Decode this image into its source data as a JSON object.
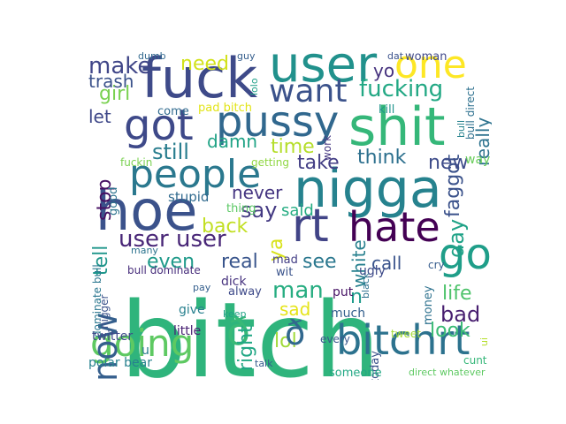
{
  "words": [
    {
      "text": "bitch",
      "color": "#2fb47c"
    },
    {
      "text": "nigga",
      "color": "#26828e"
    },
    {
      "text": "hoe",
      "color": "#3b528b"
    },
    {
      "text": "fuck",
      "color": "#3e4a89"
    },
    {
      "text": "user",
      "color": "#21918c"
    },
    {
      "text": "shit",
      "color": "#35b779"
    },
    {
      "text": "pussy",
      "color": "#31688e"
    },
    {
      "text": "got",
      "color": "#3e4989"
    },
    {
      "text": "people",
      "color": "#2a788e"
    },
    {
      "text": "rt",
      "color": "#414487"
    },
    {
      "text": "hate",
      "color": "#440154"
    },
    {
      "text": "bitchrt",
      "color": "#2c728e"
    },
    {
      "text": "go",
      "color": "#1f9e89"
    },
    {
      "text": "going",
      "color": "#5ec962"
    },
    {
      "text": "know",
      "color": "#355f8d"
    },
    {
      "text": "one",
      "color": "#fde725"
    },
    {
      "text": "want",
      "color": "#3b528b"
    },
    {
      "text": "ð",
      "color": "#38b977"
    },
    {
      "text": "fucking",
      "color": "#22a884"
    },
    {
      "text": "user user",
      "color": "#482677"
    },
    {
      "text": "make",
      "color": "#404688"
    },
    {
      "text": "need",
      "color": "#d2e21b"
    },
    {
      "text": "girl",
      "color": "#7ad151"
    },
    {
      "text": "trash",
      "color": "#3b528b"
    },
    {
      "text": "lol",
      "color": "#a0da39"
    },
    {
      "text": "ð",
      "color": "#31688e"
    },
    {
      "text": "still",
      "color": "#287d8e"
    },
    {
      "text": "time",
      "color": "#b5de2b"
    },
    {
      "text": "damn",
      "color": "#20a386"
    },
    {
      "text": "say",
      "color": "#443a83"
    },
    {
      "text": "even",
      "color": "#1f9a8a"
    },
    {
      "text": "real",
      "color": "#39558c"
    },
    {
      "text": "see",
      "color": "#2a778e"
    },
    {
      "text": "man",
      "color": "#27ad81"
    },
    {
      "text": "day",
      "color": "#1fa287"
    },
    {
      "text": "faggot",
      "color": "#3b528b"
    },
    {
      "text": "new",
      "color": "#3e4c8a"
    },
    {
      "text": "think",
      "color": "#2d708e"
    },
    {
      "text": "take",
      "color": "#433e85"
    },
    {
      "text": "tell",
      "color": "#1f968b"
    },
    {
      "text": "stop",
      "color": "#471063"
    },
    {
      "text": "let",
      "color": "#3f4889"
    },
    {
      "text": "really",
      "color": "#2c728e"
    },
    {
      "text": "yo",
      "color": "#46327e"
    },
    {
      "text": "back",
      "color": "#c2df23"
    },
    {
      "text": "never",
      "color": "#453581"
    },
    {
      "text": "said",
      "color": "#25ac82"
    },
    {
      "text": "white",
      "color": "#27808e"
    },
    {
      "text": "call",
      "color": "#3a548c"
    },
    {
      "text": "life",
      "color": "#4ec36b"
    },
    {
      "text": "bad",
      "color": "#481f70"
    },
    {
      "text": "look",
      "color": "#3bbb75"
    },
    {
      "text": "sad",
      "color": "#e5e419"
    },
    {
      "text": "n",
      "color": "#1e9b8a"
    },
    {
      "text": "right",
      "color": "#22a785"
    },
    {
      "text": "ya",
      "color": "#d8e219"
    },
    {
      "text": "stupid",
      "color": "#306a8e"
    },
    {
      "text": "thing",
      "color": "#5ac864"
    },
    {
      "text": "come",
      "color": "#306a8e"
    },
    {
      "text": "pad bitch",
      "color": "#e2e418"
    },
    {
      "text": "kill",
      "color": "#1f948c"
    },
    {
      "text": "woman",
      "color": "#3f4788"
    },
    {
      "text": "dat",
      "color": "#3b528b"
    },
    {
      "text": "dumb",
      "color": "#31688e"
    },
    {
      "text": "guy",
      "color": "#355e8d"
    },
    {
      "text": "good",
      "color": "#2c738e"
    },
    {
      "text": "fuckin",
      "color": "#7ad151"
    },
    {
      "text": "getting",
      "color": "#90d743"
    },
    {
      "text": "work",
      "color": "#453781"
    },
    {
      "text": "way",
      "color": "#69cd5b"
    },
    {
      "text": "bull direct",
      "color": "#2d708e"
    },
    {
      "text": "bull",
      "color": "#26828e"
    },
    {
      "text": "lolo",
      "color": "#1fa088"
    },
    {
      "text": "ugly",
      "color": "#3e4a89"
    },
    {
      "text": "cry",
      "color": "#365c8d"
    },
    {
      "text": "mad",
      "color": "#433e85"
    },
    {
      "text": "wit",
      "color": "#3a538b"
    },
    {
      "text": "dick",
      "color": "#46327e"
    },
    {
      "text": "alway",
      "color": "#3e4a89"
    },
    {
      "text": "put",
      "color": "#471365"
    },
    {
      "text": "much",
      "color": "#34608d"
    },
    {
      "text": "money",
      "color": "#2d718e"
    },
    {
      "text": "bull dominate",
      "color": "#472d7b"
    },
    {
      "text": "many",
      "color": "#2c738e"
    },
    {
      "text": "dominate bull",
      "color": "#2a768e"
    },
    {
      "text": "nigger",
      "color": "#3b528b"
    },
    {
      "text": "pay",
      "color": "#355f8d"
    },
    {
      "text": "give",
      "color": "#27808e"
    },
    {
      "text": "keep",
      "color": "#20a386"
    },
    {
      "text": "black",
      "color": "#2d708e"
    },
    {
      "text": "twitter",
      "color": "#3e4989"
    },
    {
      "text": "little",
      "color": "#482173"
    },
    {
      "text": "u",
      "color": "#297b8e"
    },
    {
      "text": "today",
      "color": "#3b528b"
    },
    {
      "text": "tweet",
      "color": "#a5db36"
    },
    {
      "text": "every",
      "color": "#39568c"
    },
    {
      "text": "cunt",
      "color": "#35b779"
    },
    {
      "text": "polar bear",
      "color": "#27808e"
    },
    {
      "text": "talk",
      "color": "#365c8d"
    },
    {
      "text": "someone",
      "color": "#22a884"
    },
    {
      "text": "direct whatever",
      "color": "#5ec962"
    },
    {
      "text": "ui",
      "color": "#b5de2b"
    }
  ]
}
